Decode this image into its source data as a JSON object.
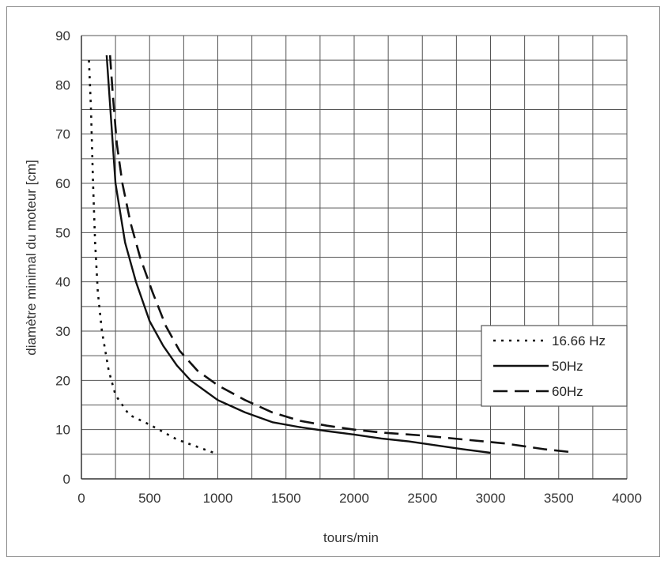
{
  "chart_data": {
    "type": "line",
    "xlabel": "tours/min",
    "ylabel": "diamètre minimal du moteur [cm]",
    "xlim": [
      0,
      4000
    ],
    "ylim": [
      0,
      90
    ],
    "x_ticks": [
      0,
      500,
      1000,
      1500,
      2000,
      2500,
      3000,
      3500,
      4000
    ],
    "y_ticks": [
      0,
      10,
      20,
      30,
      40,
      50,
      60,
      70,
      80,
      90
    ],
    "grid": true,
    "legend_position": "right",
    "series": [
      {
        "name": "16.66 Hz",
        "style": "dotted",
        "color": "#111111",
        "points": [
          [
            55,
            85
          ],
          [
            70,
            75
          ],
          [
            85,
            60
          ],
          [
            100,
            48
          ],
          [
            120,
            38
          ],
          [
            150,
            30
          ],
          [
            200,
            22
          ],
          [
            250,
            17
          ],
          [
            350,
            13
          ],
          [
            500,
            11
          ],
          [
            700,
            8
          ],
          [
            900,
            6
          ],
          [
            1000,
            5
          ]
        ]
      },
      {
        "name": "50Hz",
        "style": "solid",
        "color": "#111111",
        "points": [
          [
            185,
            86
          ],
          [
            210,
            76
          ],
          [
            250,
            60
          ],
          [
            320,
            48
          ],
          [
            400,
            40
          ],
          [
            500,
            32
          ],
          [
            600,
            27
          ],
          [
            700,
            23
          ],
          [
            800,
            20
          ],
          [
            1000,
            16
          ],
          [
            1200,
            13.5
          ],
          [
            1400,
            11.5
          ],
          [
            1600,
            10.5
          ],
          [
            1800,
            9.7
          ],
          [
            2000,
            9
          ],
          [
            2200,
            8.2
          ],
          [
            2400,
            7.6
          ],
          [
            2600,
            6.8
          ],
          [
            2800,
            6
          ],
          [
            3000,
            5.3
          ]
        ]
      },
      {
        "name": "60Hz",
        "style": "dashed",
        "color": "#111111",
        "points": [
          [
            210,
            86
          ],
          [
            230,
            78
          ],
          [
            260,
            68
          ],
          [
            300,
            60
          ],
          [
            360,
            52
          ],
          [
            430,
            45
          ],
          [
            520,
            38
          ],
          [
            620,
            31
          ],
          [
            720,
            26
          ],
          [
            850,
            22
          ],
          [
            1000,
            19
          ],
          [
            1200,
            16
          ],
          [
            1400,
            13.5
          ],
          [
            1600,
            11.8
          ],
          [
            1800,
            10.8
          ],
          [
            2000,
            10
          ],
          [
            2200,
            9.4
          ],
          [
            2500,
            8.8
          ],
          [
            2800,
            8
          ],
          [
            3100,
            7.2
          ],
          [
            3400,
            6
          ],
          [
            3600,
            5.4
          ]
        ]
      }
    ]
  }
}
